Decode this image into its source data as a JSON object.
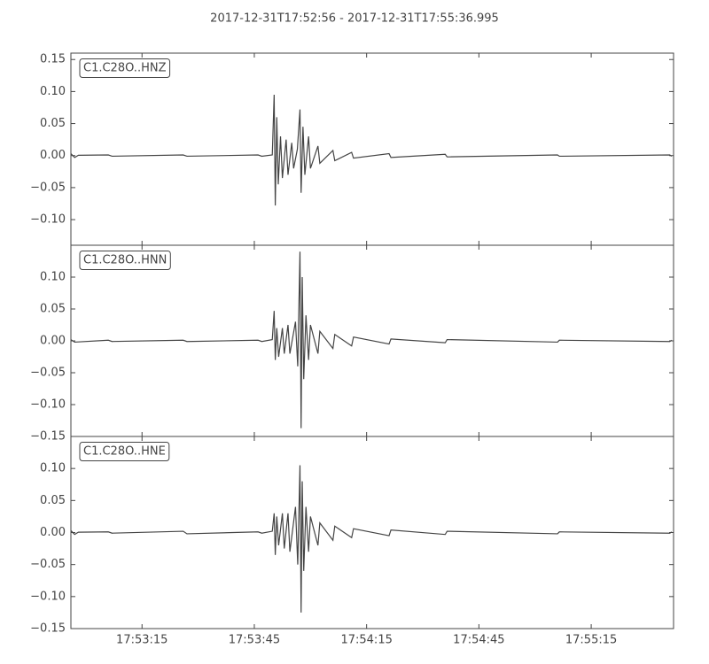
{
  "chart_data": [
    {
      "type": "line",
      "title": "2017-12-31T17:52:56  -  2017-12-31T17:55:36.995",
      "label": "C1.C28O..HNZ",
      "color": "#444444",
      "x": [
        0,
        1,
        2,
        10,
        11,
        30,
        31,
        50,
        51,
        53.8,
        54.3,
        54.6,
        55,
        55.4,
        56,
        56.5,
        57.5,
        58,
        59,
        59.5,
        60.5,
        61.2,
        61.5,
        62,
        62.5,
        63.5,
        64,
        66,
        66.5,
        70,
        70.5,
        75,
        75.5,
        85,
        85.5,
        100,
        100.5,
        130,
        130.5,
        160,
        160.5
      ],
      "values": [
        0.003,
        -0.003,
        0.0005,
        0.001,
        -0.001,
        0.001,
        -0.001,
        0.001,
        -0.001,
        0.001,
        0.095,
        -0.078,
        0.06,
        -0.045,
        0.03,
        -0.035,
        0.025,
        -0.03,
        0.02,
        -0.02,
        0.01,
        0.072,
        -0.058,
        0.045,
        -0.03,
        0.03,
        -0.02,
        0.015,
        -0.012,
        0.008,
        -0.008,
        0.005,
        -0.004,
        0.003,
        -0.003,
        0.002,
        -0.002,
        0.001,
        -0.001,
        0.001,
        -0.001
      ],
      "ylim": [
        -0.14,
        0.16
      ],
      "yticks": [
        {
          "value": -0.1,
          "label": "−0.10"
        },
        {
          "value": -0.05,
          "label": "−0.05"
        },
        {
          "value": 0,
          "label": "0.00"
        },
        {
          "value": 0.05,
          "label": "0.05"
        },
        {
          "value": 0.1,
          "label": "0.10"
        },
        {
          "value": 0.15,
          "label": "0.15"
        }
      ],
      "xlim": [
        0,
        161
      ]
    },
    {
      "type": "line",
      "label": "C1.C28O..HNN",
      "color": "#444444",
      "x": [
        0,
        1,
        10,
        11,
        30,
        31,
        50,
        51,
        53.8,
        54.3,
        54.6,
        55,
        55.5,
        56.5,
        57,
        58,
        58.5,
        60,
        60.6,
        61.2,
        61.5,
        61.8,
        62.2,
        62.8,
        63.5,
        64,
        66,
        66.5,
        70,
        70.5,
        75,
        75.5,
        85,
        85.5,
        100,
        100.5,
        130,
        130.5,
        160,
        160.5
      ],
      "values": [
        0.002,
        -0.002,
        0.001,
        -0.001,
        0.001,
        -0.001,
        0.001,
        -0.001,
        0.002,
        0.047,
        -0.03,
        0.02,
        -0.025,
        0.02,
        -0.02,
        0.025,
        -0.02,
        0.03,
        -0.04,
        0.14,
        -0.137,
        0.1,
        -0.06,
        0.04,
        -0.03,
        0.025,
        -0.02,
        0.015,
        -0.012,
        0.01,
        -0.008,
        0.006,
        -0.005,
        0.003,
        -0.003,
        0.002,
        -0.002,
        0.001,
        -0.001,
        0.001
      ],
      "ylim": [
        -0.15,
        0.15
      ],
      "yticks": [
        {
          "value": -0.15,
          "label": "−0.15"
        },
        {
          "value": -0.1,
          "label": "−0.10"
        },
        {
          "value": -0.05,
          "label": "−0.05"
        },
        {
          "value": 0,
          "label": "0.00"
        },
        {
          "value": 0.05,
          "label": "0.05"
        },
        {
          "value": 0.1,
          "label": "0.10"
        }
      ],
      "xlim": [
        0,
        161
      ]
    },
    {
      "type": "line",
      "label": "C1.C28O..HNE",
      "color": "#444444",
      "x": [
        0,
        1,
        2,
        10,
        11,
        30,
        31,
        50,
        51,
        53.8,
        54.3,
        54.6,
        55,
        55.5,
        56.5,
        57,
        58,
        58.5,
        60,
        60.6,
        61.2,
        61.5,
        61.8,
        62.2,
        62.8,
        63.5,
        64,
        66,
        66.5,
        70,
        70.5,
        75,
        75.5,
        85,
        85.5,
        100,
        100.5,
        130,
        130.5,
        160,
        160.5
      ],
      "values": [
        0.003,
        -0.003,
        0.0005,
        0.001,
        -0.001,
        0.002,
        -0.002,
        0.001,
        -0.001,
        0.002,
        0.03,
        -0.035,
        0.025,
        -0.02,
        0.03,
        -0.025,
        0.03,
        -0.03,
        0.04,
        -0.05,
        0.105,
        -0.125,
        0.08,
        -0.06,
        0.04,
        -0.03,
        0.025,
        -0.02,
        0.015,
        -0.012,
        0.01,
        -0.008,
        0.006,
        -0.005,
        0.004,
        -0.003,
        0.002,
        -0.002,
        0.001,
        -0.001,
        0.001
      ],
      "ylim": [
        -0.15,
        0.15
      ],
      "yticks": [
        {
          "value": -0.15,
          "label": "−0.15"
        },
        {
          "value": -0.1,
          "label": "−0.10"
        },
        {
          "value": -0.05,
          "label": "−0.05"
        },
        {
          "value": 0,
          "label": "0.00"
        },
        {
          "value": 0.05,
          "label": "0.05"
        },
        {
          "value": 0.1,
          "label": "0.10"
        }
      ],
      "xlim": [
        0,
        161
      ],
      "xticks": [
        {
          "value": 19,
          "label": "17:53:15"
        },
        {
          "value": 49,
          "label": "17:53:45"
        },
        {
          "value": 79,
          "label": "17:54:15"
        },
        {
          "value": 109,
          "label": "17:54:45"
        },
        {
          "value": 139,
          "label": "17:55:15"
        }
      ]
    }
  ]
}
